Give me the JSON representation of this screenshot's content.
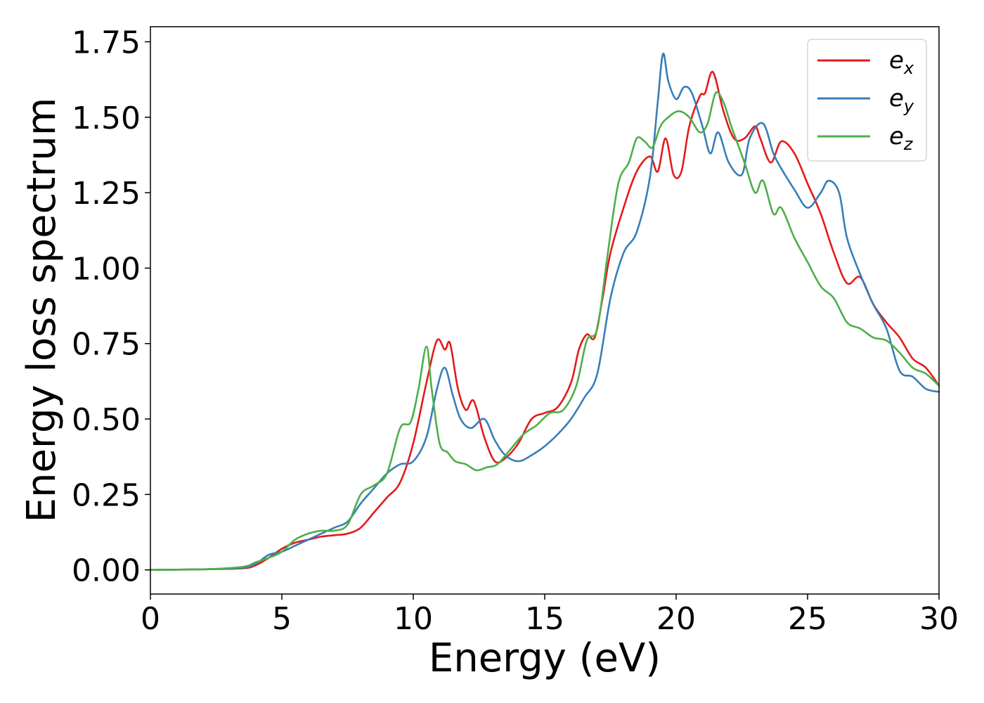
{
  "chart_data": {
    "type": "line",
    "title": "",
    "xlabel": "Energy (eV)",
    "ylabel": "Energy loss spectrum",
    "xlim": [
      0,
      30
    ],
    "ylim": [
      -0.08,
      1.8
    ],
    "xticks": [
      0,
      5,
      10,
      15,
      20,
      25,
      30
    ],
    "xtick_labels": [
      "0",
      "5",
      "10",
      "15",
      "20",
      "25",
      "30"
    ],
    "yticks": [
      0,
      0.25,
      0.5,
      0.75,
      1.0,
      1.25,
      1.5,
      1.75
    ],
    "ytick_labels": [
      "0.00",
      "0.25",
      "0.50",
      "0.75",
      "1.00",
      "1.25",
      "1.50",
      "1.75"
    ],
    "grid": false,
    "legend_position": "top-right",
    "series": [
      {
        "name": "e_x",
        "label_base": "e",
        "label_sub": "x",
        "color": "#e41a1c",
        "x": [
          0,
          2,
          3.5,
          4,
          4.5,
          5,
          5.5,
          6,
          6.5,
          7,
          7.5,
          8,
          8.5,
          9,
          9.5,
          10,
          10.5,
          10.9,
          11.2,
          11.4,
          11.7,
          12,
          12.3,
          12.7,
          13.1,
          13.5,
          14,
          14.5,
          15,
          15.5,
          16,
          16.3,
          16.6,
          16.9,
          17.2,
          17.5,
          18,
          18.5,
          19,
          19.3,
          19.6,
          19.9,
          20.2,
          20.5,
          20.9,
          21.1,
          21.4,
          21.8,
          22.2,
          22.6,
          23,
          23.2,
          23.6,
          24,
          24.5,
          25,
          25.5,
          26,
          26.5,
          27,
          27.5,
          28,
          28.5,
          29,
          29.5,
          30
        ],
        "y": [
          0,
          0.002,
          0.005,
          0.015,
          0.04,
          0.07,
          0.09,
          0.1,
          0.11,
          0.115,
          0.12,
          0.14,
          0.19,
          0.24,
          0.29,
          0.42,
          0.62,
          0.76,
          0.73,
          0.75,
          0.6,
          0.53,
          0.56,
          0.44,
          0.36,
          0.37,
          0.42,
          0.5,
          0.52,
          0.54,
          0.62,
          0.73,
          0.78,
          0.77,
          0.9,
          1.05,
          1.2,
          1.32,
          1.37,
          1.32,
          1.43,
          1.31,
          1.32,
          1.47,
          1.57,
          1.58,
          1.65,
          1.52,
          1.43,
          1.43,
          1.47,
          1.43,
          1.35,
          1.42,
          1.38,
          1.28,
          1.18,
          1.05,
          0.95,
          0.97,
          0.88,
          0.82,
          0.77,
          0.7,
          0.67,
          0.61
        ]
      },
      {
        "name": "e_y",
        "label_base": "e",
        "label_sub": "y",
        "color": "#377eb8",
        "x": [
          0,
          2,
          3.5,
          4,
          4.5,
          5,
          5.5,
          6,
          6.5,
          7,
          7.5,
          8,
          8.5,
          9,
          9.5,
          10,
          10.5,
          10.9,
          11.2,
          11.5,
          11.8,
          12.2,
          12.7,
          13.1,
          13.5,
          14,
          14.5,
          15,
          15.5,
          16,
          16.5,
          17,
          17.5,
          18,
          18.5,
          19,
          19.3,
          19.5,
          19.7,
          20,
          20.3,
          20.6,
          21,
          21.3,
          21.6,
          22,
          22.5,
          22.8,
          23.3,
          23.7,
          24,
          24.5,
          25,
          25.5,
          25.8,
          26.2,
          26.5,
          27,
          27.5,
          28,
          28.5,
          29,
          29.5,
          30
        ],
        "y": [
          0,
          0.002,
          0.007,
          0.02,
          0.05,
          0.06,
          0.08,
          0.1,
          0.12,
          0.14,
          0.16,
          0.22,
          0.27,
          0.32,
          0.35,
          0.36,
          0.44,
          0.6,
          0.67,
          0.58,
          0.5,
          0.47,
          0.5,
          0.43,
          0.38,
          0.36,
          0.38,
          0.41,
          0.45,
          0.5,
          0.57,
          0.65,
          0.9,
          1.05,
          1.12,
          1.3,
          1.55,
          1.71,
          1.62,
          1.56,
          1.6,
          1.58,
          1.47,
          1.38,
          1.45,
          1.35,
          1.31,
          1.43,
          1.48,
          1.38,
          1.33,
          1.26,
          1.2,
          1.25,
          1.29,
          1.25,
          1.1,
          0.98,
          0.88,
          0.8,
          0.66,
          0.64,
          0.6,
          0.59
        ]
      },
      {
        "name": "e_z",
        "label_base": "e",
        "label_sub": "z",
        "color": "#4daf4a",
        "x": [
          0,
          2,
          3.5,
          4,
          4.5,
          5,
          5.5,
          6,
          6.5,
          7,
          7.5,
          8,
          8.5,
          9,
          9.5,
          9.9,
          10.2,
          10.5,
          10.7,
          11,
          11.3,
          11.6,
          12,
          12.4,
          12.8,
          13.2,
          13.7,
          14.2,
          14.7,
          15.2,
          15.7,
          16.2,
          16.6,
          17,
          17.4,
          17.8,
          18.2,
          18.5,
          18.8,
          19.1,
          19.4,
          19.7,
          20.1,
          20.5,
          20.9,
          21.2,
          21.5,
          21.8,
          22.1,
          22.6,
          23,
          23.3,
          23.7,
          24,
          24.5,
          25,
          25.5,
          26,
          26.5,
          27,
          27.5,
          28,
          28.5,
          29,
          29.5,
          30
        ],
        "y": [
          0,
          0.002,
          0.01,
          0.025,
          0.04,
          0.06,
          0.1,
          0.12,
          0.13,
          0.13,
          0.15,
          0.25,
          0.28,
          0.32,
          0.47,
          0.49,
          0.6,
          0.74,
          0.6,
          0.42,
          0.39,
          0.36,
          0.35,
          0.33,
          0.34,
          0.35,
          0.4,
          0.45,
          0.48,
          0.52,
          0.53,
          0.61,
          0.76,
          0.8,
          1.05,
          1.28,
          1.35,
          1.43,
          1.42,
          1.4,
          1.47,
          1.5,
          1.52,
          1.5,
          1.45,
          1.48,
          1.58,
          1.55,
          1.47,
          1.35,
          1.25,
          1.29,
          1.18,
          1.2,
          1.1,
          1.02,
          0.94,
          0.9,
          0.82,
          0.8,
          0.77,
          0.76,
          0.72,
          0.67,
          0.65,
          0.61
        ]
      }
    ]
  }
}
